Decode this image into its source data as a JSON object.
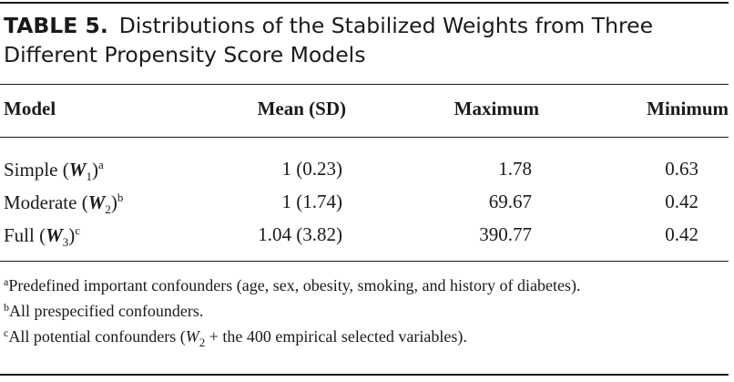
{
  "title": {
    "label": "TABLE 5.",
    "text": "Distributions of the Stabilized Weights from Three Different Propensity Score Models"
  },
  "columns": [
    "Model",
    "Mean (SD)",
    "Maximum",
    "Minimum"
  ],
  "rows": [
    {
      "model": "Simple",
      "weight": "W",
      "sub": "1",
      "sup": "a",
      "mean_sd": "1 (0.23)",
      "maximum": "1.78",
      "minimum": "0.63"
    },
    {
      "model": "Moderate",
      "weight": "W",
      "sub": "2",
      "sup": "b",
      "mean_sd": "1 (1.74)",
      "maximum": "69.67",
      "minimum": "0.42"
    },
    {
      "model": "Full",
      "weight": "W",
      "sub": "3",
      "sup": "c",
      "mean_sd": "1.04 (3.82)",
      "maximum": "390.77",
      "minimum": "0.42"
    }
  ],
  "footnotes": [
    {
      "mark": "a",
      "text": "Predefined important confounders (age, sex, obesity, smoking, and history of diabetes)."
    },
    {
      "mark": "b",
      "text": "All prespecified confounders."
    },
    {
      "mark": "c",
      "pre": "All potential confounders (",
      "var": "W",
      "sub": "2",
      "post": " + the 400 empirical selected variables)."
    }
  ]
}
